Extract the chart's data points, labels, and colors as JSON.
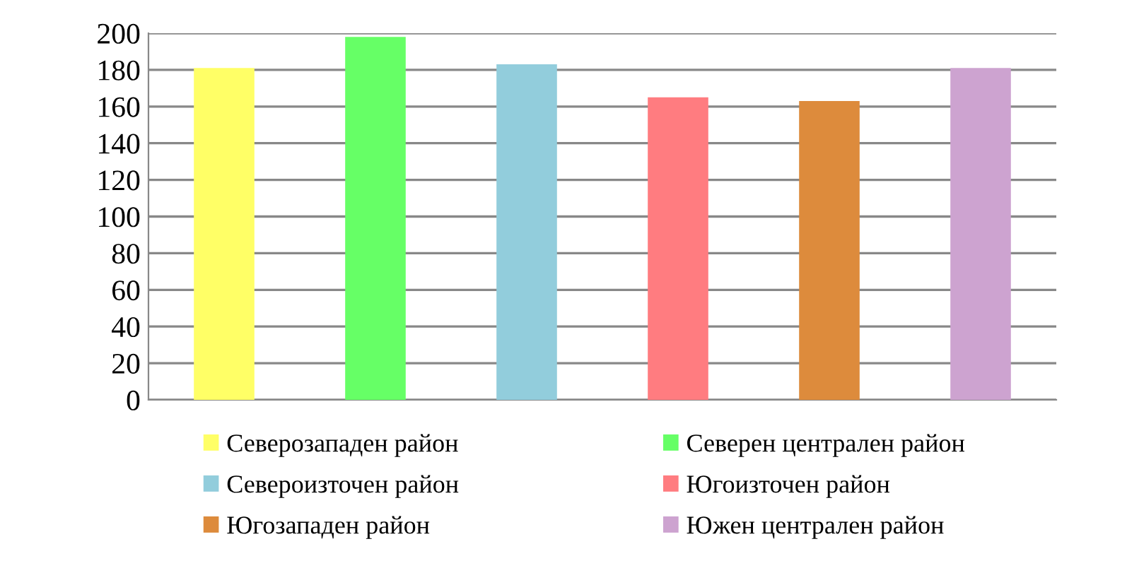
{
  "chart_data": {
    "type": "bar",
    "categories": [
      null,
      null,
      null,
      null,
      null,
      null
    ],
    "series": [
      {
        "name": "Северозападен район",
        "color": "#ffff66",
        "values": [
          181,
          null,
          null,
          null,
          null,
          null
        ]
      },
      {
        "name": "Северен централен район",
        "color": "#66ff66",
        "values": [
          null,
          198,
          null,
          null,
          null,
          null
        ]
      },
      {
        "name": "Североизточен район",
        "color": "#92cddc",
        "values": [
          null,
          null,
          183,
          null,
          null,
          null
        ]
      },
      {
        "name": "Югоизточен район",
        "color": "#ff7c80",
        "values": [
          null,
          null,
          null,
          165,
          null,
          null
        ]
      },
      {
        "name": "Югозападен район",
        "color": "#dd8b3c",
        "values": [
          null,
          null,
          null,
          null,
          163,
          null
        ]
      },
      {
        "name": "Южен централен район",
        "color": "#cda3d0",
        "values": [
          null,
          null,
          null,
          null,
          null,
          181
        ]
      }
    ],
    "ylim": [
      0,
      200
    ],
    "yticks": [
      0,
      20,
      40,
      60,
      80,
      100,
      120,
      140,
      160,
      180,
      200
    ],
    "grid": "y",
    "legend": "bottom"
  }
}
